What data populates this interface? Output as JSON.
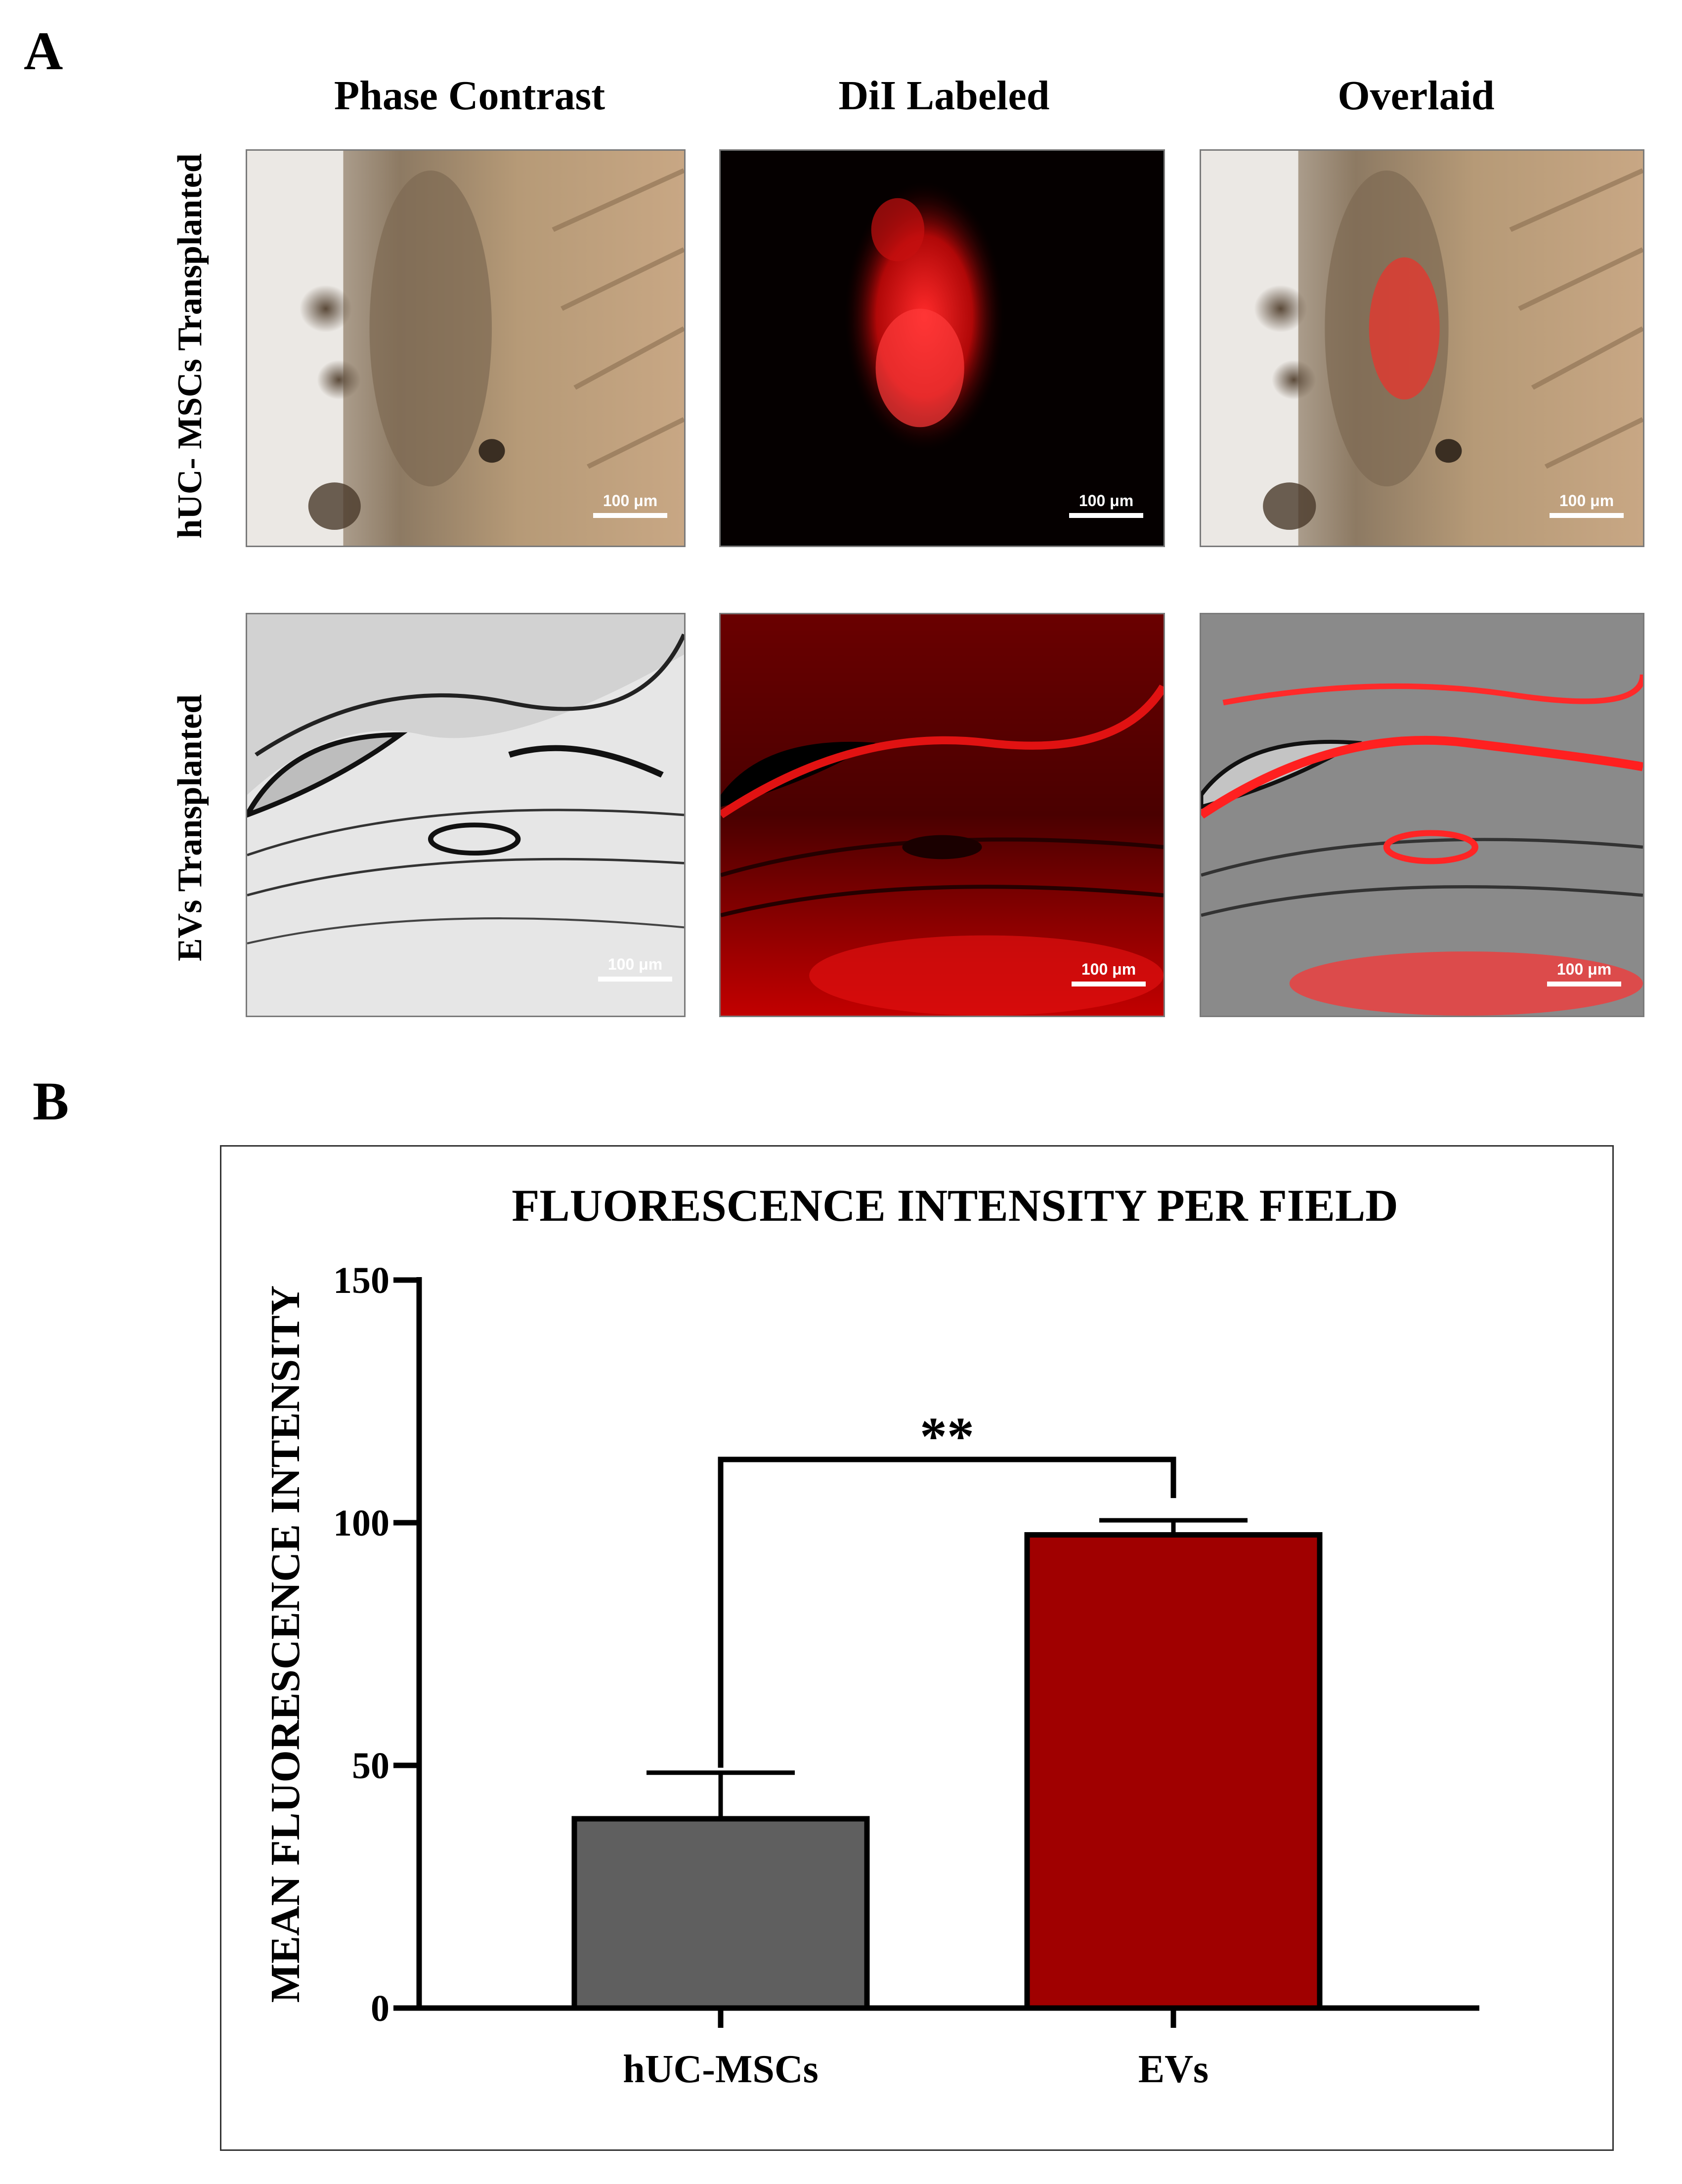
{
  "panel_a": {
    "letter": "A",
    "columns": [
      "Phase Contrast",
      "DiI Labeled",
      "Overlaid"
    ],
    "rows": [
      "hUC- MSCs Transplanted",
      "EVs Transplanted"
    ],
    "scale_bar_label": "100 μm"
  },
  "panel_b": {
    "letter": "B"
  },
  "colors": {
    "hUC-MSCs": "#5f5f5f",
    "EVs": "#a00000"
  },
  "chart_data": {
    "type": "bar",
    "title": "FLUORESCENCE INTENSITY PER FIELD",
    "xlabel": "",
    "ylabel": "MEAN FLUORESCENCE INTENSITY",
    "categories": [
      "hUC-MSCs",
      "EVs"
    ],
    "values": [
      39,
      97.5
    ],
    "error_upper": [
      48.5,
      100.5
    ],
    "ylim": [
      0,
      150
    ],
    "yticks": [
      0,
      50,
      100,
      150
    ],
    "significance": {
      "between": [
        "hUC-MSCs",
        "EVs"
      ],
      "label": "**"
    },
    "grid": false,
    "legend": "none"
  }
}
